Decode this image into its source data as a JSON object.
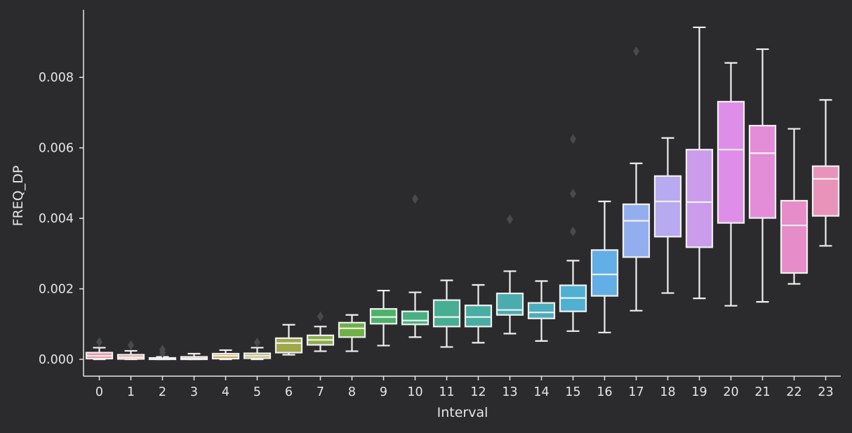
{
  "chart_data": {
    "type": "box",
    "xlabel": "Interval",
    "ylabel": "FREQ_DP",
    "categories": [
      "0",
      "1",
      "2",
      "3",
      "4",
      "5",
      "6",
      "7",
      "8",
      "9",
      "10",
      "11",
      "12",
      "13",
      "14",
      "15",
      "16",
      "17",
      "18",
      "19",
      "20",
      "21",
      "22",
      "23"
    ],
    "yticks": [
      "0.000",
      "0.002",
      "0.004",
      "0.006",
      "0.008"
    ],
    "ylim": [
      -0.00045,
      0.0098
    ],
    "boxes": [
      {
        "category": "0",
        "color": "#f28e9e",
        "whisker_low": 0.0,
        "q1": 2e-05,
        "median": 0.0001,
        "q3": 0.00019,
        "whisker_high": 0.00033,
        "outliers": [
          0.00049
        ]
      },
      {
        "category": "1",
        "color": "#ef8d74",
        "whisker_low": 0.0,
        "q1": 1e-05,
        "median": 6e-05,
        "q3": 0.00013,
        "whisker_high": 0.00024,
        "outliers": [
          0.0004
        ]
      },
      {
        "category": "2",
        "color": "#e99364",
        "whisker_low": 0.0,
        "q1": 0.0,
        "median": 1e-05,
        "q3": 4e-05,
        "whisker_high": 7e-05,
        "outliers": [
          0.00018,
          0.00028
        ]
      },
      {
        "category": "3",
        "color": "#d99b4f",
        "whisker_low": 0.0,
        "q1": 0.0,
        "median": 2e-05,
        "q3": 7e-05,
        "whisker_high": 0.00016,
        "outliers": []
      },
      {
        "category": "4",
        "color": "#c6a54a",
        "whisker_low": 0.0,
        "q1": 2e-05,
        "median": 0.0001,
        "q3": 0.00016,
        "whisker_high": 0.00026,
        "outliers": []
      },
      {
        "category": "5",
        "color": "#b3a949",
        "whisker_low": 0.0,
        "q1": 3e-05,
        "median": 0.0001,
        "q3": 0.00017,
        "whisker_high": 0.00033,
        "outliers": [
          0.00048
        ]
      },
      {
        "category": "6",
        "color": "#a0a84a",
        "whisker_low": 0.00013,
        "q1": 0.00019,
        "median": 0.00046,
        "q3": 0.0006,
        "whisker_high": 0.00098,
        "outliers": []
      },
      {
        "category": "7",
        "color": "#8cae47",
        "whisker_low": 0.00023,
        "q1": 0.00041,
        "median": 0.00055,
        "q3": 0.00068,
        "whisker_high": 0.00093,
        "outliers": [
          0.00122
        ]
      },
      {
        "category": "8",
        "color": "#70b047",
        "whisker_low": 0.00023,
        "q1": 0.00063,
        "median": 0.00088,
        "q3": 0.00104,
        "whisker_high": 0.00126,
        "outliers": []
      },
      {
        "category": "9",
        "color": "#4cb268",
        "whisker_low": 0.00039,
        "q1": 0.00101,
        "median": 0.0012,
        "q3": 0.00143,
        "whisker_high": 0.00195,
        "outliers": []
      },
      {
        "category": "10",
        "color": "#48b082",
        "whisker_low": 0.00063,
        "q1": 0.00099,
        "median": 0.0011,
        "q3": 0.00136,
        "whisker_high": 0.0019,
        "outliers": [
          0.00455
        ]
      },
      {
        "category": "11",
        "color": "#47ae93",
        "whisker_low": 0.00035,
        "q1": 0.00093,
        "median": 0.0012,
        "q3": 0.00168,
        "whisker_high": 0.00224,
        "outliers": []
      },
      {
        "category": "12",
        "color": "#48ada2",
        "whisker_low": 0.00047,
        "q1": 0.00093,
        "median": 0.0012,
        "q3": 0.00153,
        "whisker_high": 0.00211,
        "outliers": []
      },
      {
        "category": "13",
        "color": "#4aacaf",
        "whisker_low": 0.00073,
        "q1": 0.00126,
        "median": 0.0014,
        "q3": 0.00187,
        "whisker_high": 0.0025,
        "outliers": [
          0.00397
        ]
      },
      {
        "category": "14",
        "color": "#4dadbc",
        "whisker_low": 0.00052,
        "q1": 0.00116,
        "median": 0.00133,
        "q3": 0.0016,
        "whisker_high": 0.00222,
        "outliers": []
      },
      {
        "category": "15",
        "color": "#4fb0d2",
        "whisker_low": 0.0008,
        "q1": 0.00136,
        "median": 0.00174,
        "q3": 0.0021,
        "whisker_high": 0.0028,
        "outliers": [
          0.00363,
          0.0047,
          0.00625
        ]
      },
      {
        "category": "16",
        "color": "#62aee6",
        "whisker_low": 0.00076,
        "q1": 0.0018,
        "median": 0.00241,
        "q3": 0.0031,
        "whisker_high": 0.00448,
        "outliers": []
      },
      {
        "category": "17",
        "color": "#93aeee",
        "whisker_low": 0.00138,
        "q1": 0.0029,
        "median": 0.00393,
        "q3": 0.0044,
        "whisker_high": 0.00556,
        "outliers": [
          0.00874
        ]
      },
      {
        "category": "18",
        "color": "#b7aaf0",
        "whisker_low": 0.00188,
        "q1": 0.00348,
        "median": 0.00448,
        "q3": 0.0052,
        "whisker_high": 0.00628,
        "outliers": []
      },
      {
        "category": "19",
        "color": "#cb9ceb",
        "whisker_low": 0.00173,
        "q1": 0.00318,
        "median": 0.00446,
        "q3": 0.00595,
        "whisker_high": 0.00942,
        "outliers": []
      },
      {
        "category": "20",
        "color": "#de8ee8",
        "whisker_low": 0.00152,
        "q1": 0.00387,
        "median": 0.00595,
        "q3": 0.00731,
        "whisker_high": 0.00841,
        "outliers": []
      },
      {
        "category": "21",
        "color": "#e38cd7",
        "whisker_low": 0.00163,
        "q1": 0.00401,
        "median": 0.00585,
        "q3": 0.00663,
        "whisker_high": 0.0088,
        "outliers": []
      },
      {
        "category": "22",
        "color": "#e68cc8",
        "whisker_low": 0.00214,
        "q1": 0.00245,
        "median": 0.0038,
        "q3": 0.0045,
        "whisker_high": 0.00654,
        "outliers": []
      },
      {
        "category": "23",
        "color": "#e993ba",
        "whisker_low": 0.00322,
        "q1": 0.00407,
        "median": 0.00512,
        "q3": 0.00548,
        "whisker_high": 0.00736,
        "outliers": []
      }
    ],
    "grid": false,
    "legend": "none",
    "colors": {
      "background": "#2b2b2e",
      "axis": "#e6e6e6",
      "box_edge": "#f0f0f0",
      "outlier": "#4a4a4d"
    }
  }
}
